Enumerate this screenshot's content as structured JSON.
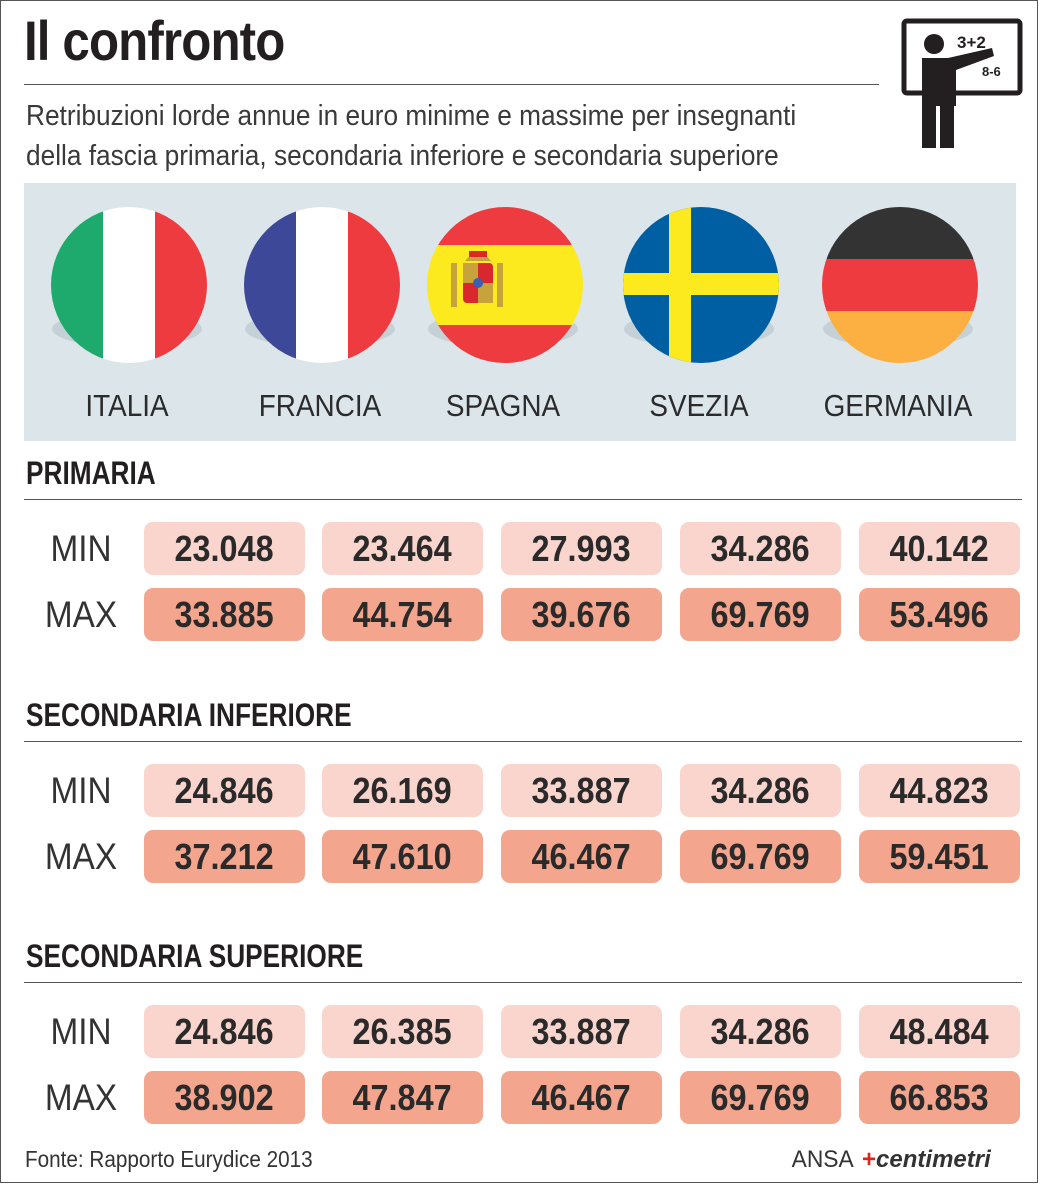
{
  "header": {
    "title": "Il confronto",
    "subtitle_line1": "Retribuzioni lorde annue in euro minime e massime per insegnanti",
    "subtitle_line2": "della fascia primaria, secondaria inferiore e secondaria superiore",
    "icon_text_top": "3+2",
    "icon_text_bottom": "8-6"
  },
  "countries": [
    {
      "name": "ITALIA",
      "flag": "italy-flag-icon"
    },
    {
      "name": "FRANCIA",
      "flag": "france-flag-icon"
    },
    {
      "name": "SPAGNA",
      "flag": "spain-flag-icon"
    },
    {
      "name": "SVEZIA",
      "flag": "sweden-flag-icon"
    },
    {
      "name": "GERMANIA",
      "flag": "germany-flag-icon"
    }
  ],
  "sections": [
    {
      "title": "PRIMARIA",
      "min_label": "MIN",
      "max_label": "MAX",
      "min": [
        "23.048",
        "23.464",
        "27.993",
        "34.286",
        "40.142"
      ],
      "max": [
        "33.885",
        "44.754",
        "39.676",
        "69.769",
        "53.496"
      ]
    },
    {
      "title": "SECONDARIA INFERIORE",
      "min_label": "MIN",
      "max_label": "MAX",
      "min": [
        "24.846",
        "26.169",
        "33.887",
        "34.286",
        "44.823"
      ],
      "max": [
        "37.212",
        "47.610",
        "46.467",
        "69.769",
        "59.451"
      ]
    },
    {
      "title": "SECONDARIA SUPERIORE",
      "min_label": "MIN",
      "max_label": "MAX",
      "min": [
        "24.846",
        "26.385",
        "33.887",
        "34.286",
        "48.484"
      ],
      "max": [
        "38.902",
        "47.847",
        "46.467",
        "69.769",
        "66.853"
      ]
    }
  ],
  "footer": {
    "source": "Fonte: Rapporto Eurydice 2013",
    "brand_ansa": "ANSA",
    "brand_centimetri": "centimetri"
  },
  "colors": {
    "min_cell": "#fad5cd",
    "max_cell": "#f4a58e",
    "band": "#dbe5ea"
  }
}
